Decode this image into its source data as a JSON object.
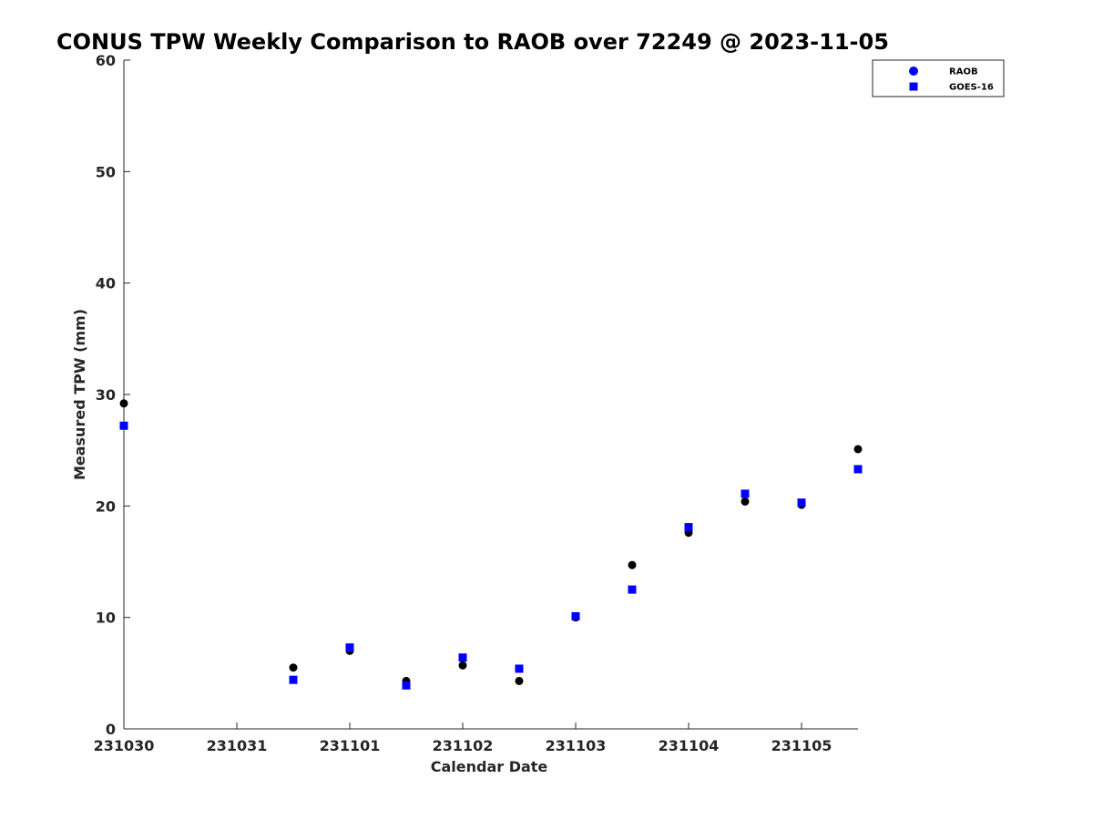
{
  "chart_data": {
    "type": "scatter",
    "title": "CONUS TPW Weekly Comparison to RAOB over 72249 @ 2023-11-05",
    "xlabel": "Calendar Date",
    "ylabel": "Measured TPW (mm)",
    "xlim": [
      "231030",
      "231105.5"
    ],
    "ylim": [
      0,
      60
    ],
    "x_ticks": [
      "231030",
      "231031",
      "231101",
      "231102",
      "231103",
      "231104",
      "231105"
    ],
    "y_ticks": [
      0,
      10,
      20,
      30,
      40,
      50,
      60
    ],
    "grid": false,
    "legend_position": "top-right",
    "legend": [
      {
        "name": "RAOB",
        "marker": "circle",
        "color": "#0000ff"
      },
      {
        "name": "GOES-16",
        "marker": "square",
        "color": "#0000ff"
      }
    ],
    "series": [
      {
        "name": "RAOB",
        "marker": "circle",
        "color": "#000000",
        "x": [
          "2023-10-30 00Z",
          "2023-10-31 12Z",
          "2023-11-01 00Z",
          "2023-11-01 12Z",
          "2023-11-02 00Z",
          "2023-11-02 12Z",
          "2023-11-03 00Z",
          "2023-11-03 12Z",
          "2023-11-04 00Z",
          "2023-11-04 12Z",
          "2023-11-05 00Z",
          "2023-11-05 12Z"
        ],
        "y": [
          29.2,
          5.5,
          7.0,
          4.3,
          5.7,
          4.3,
          10.0,
          14.7,
          17.6,
          20.4,
          20.1,
          25.1
        ]
      },
      {
        "name": "GOES-16",
        "marker": "square",
        "color": "#0000ff",
        "x": [
          "2023-10-30 00Z",
          "2023-10-31 12Z",
          "2023-11-01 00Z",
          "2023-11-01 12Z",
          "2023-11-02 00Z",
          "2023-11-02 12Z",
          "2023-11-03 00Z",
          "2023-11-03 12Z",
          "2023-11-04 00Z",
          "2023-11-04 12Z",
          "2023-11-05 00Z",
          "2023-11-05 12Z"
        ],
        "y": [
          27.2,
          4.4,
          7.3,
          3.9,
          6.4,
          5.4,
          10.1,
          12.5,
          18.1,
          21.1,
          20.3,
          23.3
        ]
      }
    ]
  }
}
